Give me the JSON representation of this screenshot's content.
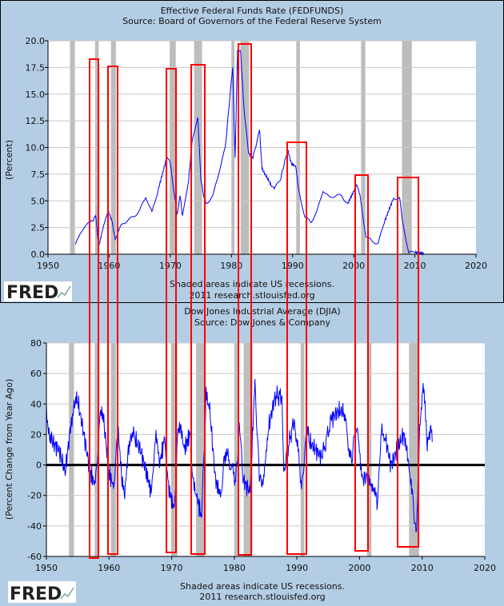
{
  "chart_data": [
    {
      "type": "line",
      "title": "Effective Federal Funds Rate (FEDFUNDS)",
      "subtitle": "Source: Board of Governors of the Federal Reserve System",
      "xlabel": "",
      "ylabel": "(Percent)",
      "xlim": [
        1950,
        2020
      ],
      "ylim": [
        0,
        20
      ],
      "xticks": [
        "1950",
        "1960",
        "1970",
        "1980",
        "1990",
        "2000",
        "2010",
        "2020"
      ],
      "yticks": [
        "0.0",
        "2.5",
        "5.0",
        "7.5",
        "10.0",
        "12.5",
        "15.0",
        "17.5",
        "20.0"
      ],
      "grid": true,
      "footer": [
        "Shaded areas indicate US recessions.",
        "2011 research.stlouisfed.org"
      ],
      "logo": "FRED",
      "series": [
        {
          "name": "FEDFUNDS",
          "color": "#0000ff",
          "x": [
            1954.5,
            1955,
            1956,
            1957,
            1957.8,
            1958.3,
            1959,
            1959.9,
            1960.5,
            1961,
            1962,
            1963,
            1964,
            1965,
            1966,
            1967,
            1968,
            1969.5,
            1970,
            1971.1,
            1971.6,
            1972,
            1973,
            1973.6,
            1974.5,
            1975,
            1975.5,
            1976,
            1977,
            1978,
            1979,
            1980.2,
            1980.6,
            1981,
            1981.5,
            1982,
            1982.8,
            1983.5,
            1984.6,
            1985,
            1986.5,
            1987,
            1988,
            1989.2,
            1989.8,
            1990.5,
            1991,
            1992,
            1993,
            1994,
            1995,
            1996,
            1997,
            1998,
            1999,
            2000.5,
            2001,
            2002,
            2003,
            2004,
            2005,
            2006.5,
            2007.5,
            2008,
            2009,
            2010,
            2011.5
          ],
          "y": [
            1.0,
            1.5,
            2.7,
            3.0,
            3.5,
            0.7,
            2.5,
            4.0,
            3.0,
            1.5,
            2.7,
            3.2,
            3.5,
            4.1,
            5.4,
            3.9,
            6.0,
            9.2,
            8.5,
            3.7,
            5.6,
            3.5,
            7.0,
            10.8,
            12.9,
            7.0,
            5.2,
            4.8,
            5.5,
            7.8,
            10.0,
            17.6,
            9.0,
            19.1,
            19.1,
            14.0,
            9.5,
            9.0,
            11.6,
            8.0,
            6.5,
            6.1,
            7.0,
            9.8,
            8.5,
            8.2,
            6.0,
            3.5,
            3.0,
            4.0,
            6.0,
            5.3,
            5.5,
            5.5,
            4.7,
            6.5,
            5.5,
            1.7,
            1.2,
            1.0,
            3.0,
            5.25,
            5.25,
            3.0,
            0.15,
            0.18,
            0.08
          ]
        }
      ],
      "recessions": [
        [
          1953.6,
          1954.4
        ],
        [
          1957.7,
          1958.3
        ],
        [
          1960.3,
          1961.1
        ],
        [
          1969.9,
          1970.9
        ],
        [
          1973.9,
          1975.2
        ],
        [
          1980.0,
          1980.5
        ],
        [
          1981.5,
          1982.9
        ],
        [
          1990.6,
          1991.2
        ],
        [
          2001.2,
          2001.9
        ],
        [
          2007.9,
          2009.5
        ]
      ]
    },
    {
      "type": "line",
      "title": "Dow Jones Industrial Average (DJIA)",
      "subtitle": "Source: Dow Jones & Company",
      "xlabel": "",
      "ylabel": "(Percent Change from Year Ago)",
      "xlim": [
        1950,
        2020
      ],
      "ylim": [
        -60,
        80
      ],
      "xticks": [
        "1950",
        "1960",
        "1970",
        "1980",
        "1990",
        "2000",
        "2010",
        "2020"
      ],
      "yticks": [
        "-60",
        "-40",
        "-20",
        "0",
        "20",
        "40",
        "60",
        "80"
      ],
      "grid": true,
      "footer": [
        "Shaded areas indicate US recessions.",
        "2011 research.stlouisfed.org"
      ],
      "logo": "FRED",
      "series": [
        {
          "name": "DJIA",
          "color": "#0000ff",
          "x": [
            1950,
            1950.5,
            1951,
            1952,
            1953,
            1954,
            1954.5,
            1955,
            1956,
            1957,
            1957.8,
            1958.5,
            1959,
            1960,
            1960.8,
            1961.5,
            1962,
            1962.5,
            1963,
            1963.5,
            1964,
            1965,
            1966,
            1966.8,
            1967.5,
            1968,
            1968.8,
            1969.5,
            1970.4,
            1971,
            1971.5,
            1972,
            1972.9,
            1973.5,
            1974,
            1974.8,
            1975.5,
            1976,
            1977,
            1977.8,
            1978.5,
            1979,
            1980.2,
            1980.8,
            1981.5,
            1982.5,
            1983.3,
            1984,
            1984.6,
            1985.5,
            1986.5,
            1987.6,
            1987.9,
            1988.5,
            1989.6,
            1990.8,
            1991.5,
            1992,
            1993,
            1994,
            1995.5,
            1996.5,
            1997.5,
            1998.7,
            1999.3,
            2000,
            2000.5,
            2001.5,
            2002.8,
            2003.5,
            2004,
            2005,
            2006,
            2007,
            2007.5,
            2008,
            2008.5,
            2009.1,
            2009.6,
            2010,
            2010.3,
            2010.8,
            2011.3,
            2011.6
          ],
          "y": [
            35,
            20,
            15,
            10,
            -5,
            30,
            40,
            42,
            20,
            -5,
            -13,
            30,
            35,
            -5,
            -15,
            25,
            -10,
            -22,
            10,
            20,
            18,
            10,
            -5,
            -20,
            20,
            0,
            15,
            -15,
            -30,
            25,
            20,
            10,
            20,
            -15,
            -20,
            -35,
            45,
            40,
            -10,
            -20,
            5,
            5,
            -10,
            25,
            -10,
            -18,
            55,
            -5,
            -12,
            25,
            45,
            45,
            -10,
            10,
            30,
            -15,
            25,
            15,
            10,
            5,
            30,
            35,
            35,
            0,
            30,
            10,
            -10,
            -5,
            -25,
            25,
            20,
            0,
            10,
            20,
            15,
            -5,
            -25,
            -45,
            20,
            45,
            50,
            10,
            25,
            15
          ]
        }
      ],
      "recessions": [
        [
          1953.6,
          1954.4
        ],
        [
          1957.7,
          1958.3
        ],
        [
          1960.3,
          1961.1
        ],
        [
          1969.9,
          1970.9
        ],
        [
          1973.9,
          1975.2
        ],
        [
          1980.0,
          1980.5
        ],
        [
          1981.5,
          1982.9
        ],
        [
          1990.6,
          1991.2
        ],
        [
          2001.2,
          2001.9
        ],
        [
          2007.9,
          2009.5
        ]
      ],
      "reference_line": 0
    }
  ]
}
